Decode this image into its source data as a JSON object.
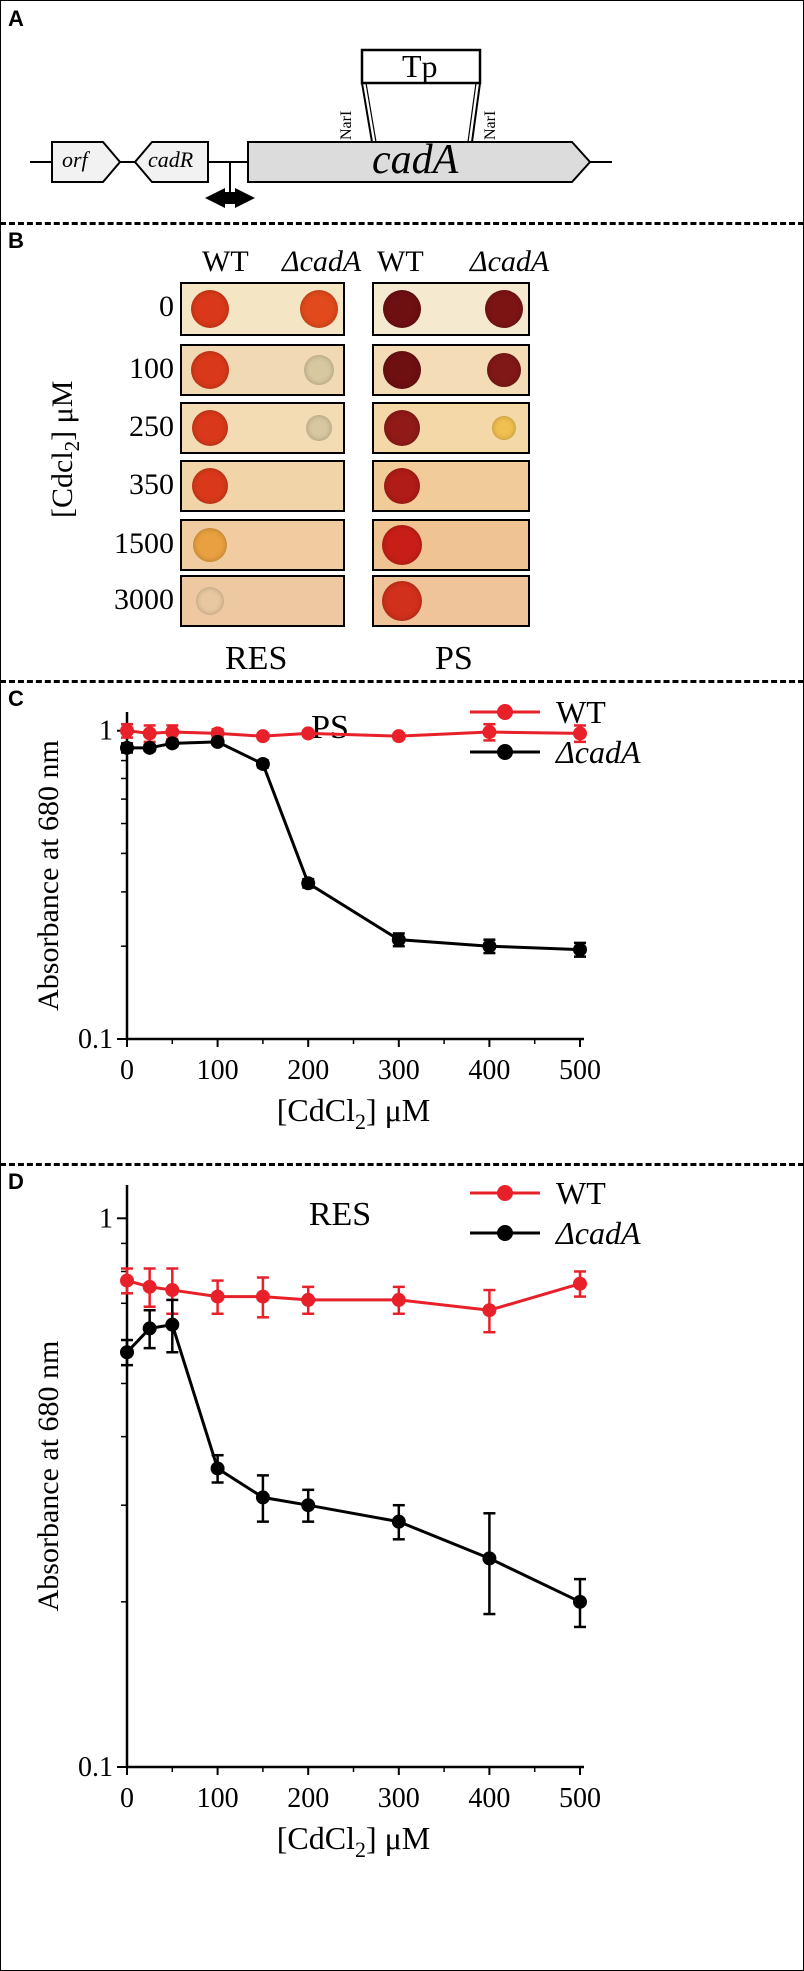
{
  "panel_letters": {
    "a": "A",
    "b": "B",
    "c": "C",
    "d": "D"
  },
  "panel_a": {
    "genes": {
      "orf": "orf",
      "cadR": "cadR",
      "cadA": "cadA"
    },
    "insert": "Tp",
    "site_left": "NarI",
    "site_right": "NarI"
  },
  "panel_b": {
    "columns": {
      "wt_res": "WT",
      "mut_res": "ΔcadA",
      "wt_ps": "WT",
      "mut_ps": "ΔcadA"
    },
    "y_label_main": "[Cdcl",
    "y_label_sub": "2",
    "y_label_unit": "] μM",
    "concentrations": [
      "0",
      "100",
      "250",
      "350",
      "1500",
      "3000"
    ],
    "res_label": "RES",
    "ps_label": "PS",
    "colors": {
      "plate_bg": "#f2e0b8",
      "res_colony": "#d93a1a",
      "ps_colony": "#7a1010"
    }
  },
  "chart_data": [
    {
      "type": "line",
      "title": "PS",
      "xlabel_main": "[CdCl",
      "xlabel_sub": "2",
      "xlabel_unit": "] μM",
      "ylabel": "Absorbance at 680 nm",
      "yscale": "log",
      "ylim": [
        0.1,
        1.15
      ],
      "xlim": [
        0,
        500
      ],
      "x_ticks": [
        "0",
        "100",
        "200",
        "300",
        "400",
        "500"
      ],
      "y_ticks": [
        "0.1",
        "1"
      ],
      "x": [
        0,
        25,
        50,
        100,
        150,
        200,
        300,
        400,
        500
      ],
      "series": [
        {
          "name": "WT",
          "color": "#e8202a",
          "values": [
            1.0,
            0.98,
            0.99,
            0.98,
            0.96,
            0.98,
            0.96,
            0.99,
            0.98
          ],
          "errors": [
            0.05,
            0.06,
            0.05,
            0.03,
            0.02,
            0.02,
            0.02,
            0.06,
            0.06
          ]
        },
        {
          "name": "ΔcadA",
          "color": "#000000",
          "values": [
            0.88,
            0.88,
            0.91,
            0.92,
            0.78,
            0.32,
            0.21,
            0.2,
            0.195
          ],
          "errors": [
            0.03,
            0.02,
            0.02,
            0.02,
            0.02,
            0.01,
            0.01,
            0.01,
            0.01
          ]
        }
      ],
      "legend": "top-right"
    },
    {
      "type": "line",
      "title": "RES",
      "xlabel_main": "[CdCl",
      "xlabel_sub": "2",
      "xlabel_unit": "] μM",
      "ylabel": "Absorbance at 680 nm",
      "yscale": "log",
      "ylim": [
        0.1,
        1.15
      ],
      "xlim": [
        0,
        500
      ],
      "x_ticks": [
        "0",
        "100",
        "200",
        "300",
        "400",
        "500"
      ],
      "y_ticks": [
        "0.1",
        "1"
      ],
      "x": [
        0,
        25,
        50,
        100,
        150,
        200,
        300,
        400,
        500
      ],
      "series": [
        {
          "name": "WT",
          "color": "#e8202a",
          "values": [
            0.77,
            0.75,
            0.74,
            0.72,
            0.72,
            0.71,
            0.71,
            0.68,
            0.76
          ],
          "errors": [
            0.04,
            0.06,
            0.07,
            0.05,
            0.06,
            0.04,
            0.04,
            0.06,
            0.04
          ]
        },
        {
          "name": "ΔcadA",
          "color": "#000000",
          "values": [
            0.57,
            0.63,
            0.64,
            0.35,
            0.31,
            0.3,
            0.28,
            0.24,
            0.2
          ],
          "errors": [
            0.03,
            0.05,
            0.07,
            0.02,
            0.03,
            0.02,
            0.02,
            0.05,
            0.02
          ]
        }
      ],
      "legend": "top-right"
    }
  ]
}
